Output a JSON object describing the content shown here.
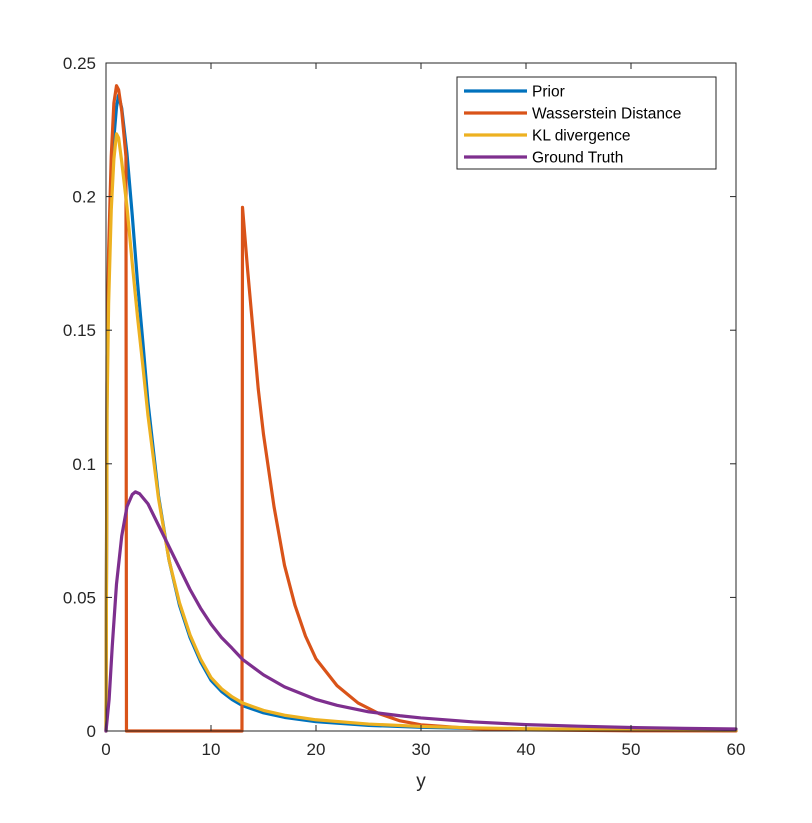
{
  "chart_data": {
    "type": "line",
    "title": "",
    "xlabel": "y",
    "ylabel": "",
    "xlim": [
      0,
      60
    ],
    "ylim": [
      0,
      0.25
    ],
    "xticks": [
      0,
      10,
      20,
      30,
      40,
      50,
      60
    ],
    "xtick_labels": [
      "0",
      "10",
      "20",
      "30",
      "40",
      "50",
      "60"
    ],
    "yticks": [
      0,
      0.05,
      0.1,
      0.15,
      0.2,
      0.25
    ],
    "ytick_labels": [
      "0",
      "0.05",
      "0.1",
      "0.15",
      "0.2",
      "0.25"
    ],
    "grid": false,
    "legend_position": "top-right",
    "series": [
      {
        "name": "Prior",
        "color": "#0072BD",
        "points": [
          [
            0,
            0
          ],
          [
            0.1,
            0.13
          ],
          [
            0.25,
            0.17
          ],
          [
            0.5,
            0.205
          ],
          [
            0.75,
            0.222
          ],
          [
            1,
            0.2335
          ],
          [
            1.2,
            0.238
          ],
          [
            1.5,
            0.233
          ],
          [
            2,
            0.216
          ],
          [
            2.5,
            0.193
          ],
          [
            3,
            0.168
          ],
          [
            3.5,
            0.146
          ],
          [
            4,
            0.123
          ],
          [
            5,
            0.088
          ],
          [
            6,
            0.064
          ],
          [
            7,
            0.047
          ],
          [
            8,
            0.035
          ],
          [
            9,
            0.026
          ],
          [
            10,
            0.019
          ],
          [
            11,
            0.0148
          ],
          [
            12,
            0.0118
          ],
          [
            13,
            0.0095
          ],
          [
            15,
            0.0068
          ],
          [
            17,
            0.0051
          ],
          [
            20,
            0.0035
          ],
          [
            25,
            0.0021
          ],
          [
            30,
            0.0014
          ],
          [
            35,
            0.00095
          ],
          [
            40,
            0.00068
          ],
          [
            50,
            0.00038
          ],
          [
            60,
            0.0002
          ]
        ]
      },
      {
        "name": "Wasserstein Distance",
        "color": "#D95319",
        "points": [
          [
            0,
            0
          ],
          [
            0.1,
            0.14
          ],
          [
            0.25,
            0.18
          ],
          [
            0.5,
            0.215
          ],
          [
            0.75,
            0.235
          ],
          [
            1,
            0.2415
          ],
          [
            1.2,
            0.24
          ],
          [
            1.5,
            0.232
          ],
          [
            1.9,
            0.215
          ],
          [
            1.95,
            0
          ],
          [
            12.95,
            0
          ],
          [
            13.0,
            0.196
          ],
          [
            13.5,
            0.172
          ],
          [
            14,
            0.15
          ],
          [
            14.5,
            0.128
          ],
          [
            15,
            0.111
          ],
          [
            16,
            0.084
          ],
          [
            17,
            0.062
          ],
          [
            18,
            0.047
          ],
          [
            19,
            0.0355
          ],
          [
            20,
            0.027
          ],
          [
            22,
            0.017
          ],
          [
            24,
            0.0105
          ],
          [
            26,
            0.0065
          ],
          [
            28,
            0.0038
          ],
          [
            30,
            0.0023
          ],
          [
            35,
            0.0009
          ],
          [
            40,
            0.0004
          ],
          [
            50,
            0.0001
          ],
          [
            60,
            5e-05
          ]
        ]
      },
      {
        "name": "KL divergence",
        "color": "#EDB120",
        "points": [
          [
            0,
            0
          ],
          [
            0.1,
            0.12
          ],
          [
            0.25,
            0.16
          ],
          [
            0.5,
            0.195
          ],
          [
            0.75,
            0.214
          ],
          [
            1,
            0.2235
          ],
          [
            1.2,
            0.222
          ],
          [
            1.5,
            0.213
          ],
          [
            2,
            0.196
          ],
          [
            2.5,
            0.175
          ],
          [
            3,
            0.155
          ],
          [
            3.5,
            0.137
          ],
          [
            4,
            0.118
          ],
          [
            5,
            0.087
          ],
          [
            6,
            0.064
          ],
          [
            7,
            0.048
          ],
          [
            8,
            0.036
          ],
          [
            9,
            0.027
          ],
          [
            10,
            0.02
          ],
          [
            11,
            0.0158
          ],
          [
            12,
            0.0128
          ],
          [
            13,
            0.0105
          ],
          [
            15,
            0.0077
          ],
          [
            17,
            0.0059
          ],
          [
            20,
            0.0042
          ],
          [
            25,
            0.0026
          ],
          [
            30,
            0.0017
          ],
          [
            35,
            0.0012
          ],
          [
            40,
            0.00085
          ],
          [
            50,
            0.00048
          ],
          [
            60,
            0.00028
          ]
        ]
      },
      {
        "name": "Ground Truth",
        "color": "#7E2F8E",
        "points": [
          [
            0,
            0
          ],
          [
            0.3,
            0.012
          ],
          [
            0.6,
            0.032
          ],
          [
            1,
            0.055
          ],
          [
            1.5,
            0.073
          ],
          [
            2,
            0.084
          ],
          [
            2.5,
            0.0885
          ],
          [
            2.8,
            0.0895
          ],
          [
            3.2,
            0.0888
          ],
          [
            4,
            0.085
          ],
          [
            5,
            0.077
          ],
          [
            6,
            0.069
          ],
          [
            7,
            0.061
          ],
          [
            8,
            0.053
          ],
          [
            9,
            0.046
          ],
          [
            10,
            0.04
          ],
          [
            11,
            0.035
          ],
          [
            12,
            0.031
          ],
          [
            13,
            0.0268
          ],
          [
            15,
            0.021
          ],
          [
            17,
            0.0165
          ],
          [
            20,
            0.0118
          ],
          [
            22,
            0.0096
          ],
          [
            25,
            0.0072
          ],
          [
            28,
            0.0057
          ],
          [
            30,
            0.0049
          ],
          [
            35,
            0.0034
          ],
          [
            40,
            0.0024
          ],
          [
            45,
            0.0018
          ],
          [
            50,
            0.0013
          ],
          [
            55,
            0.00098
          ],
          [
            60,
            0.00075
          ]
        ]
      }
    ]
  }
}
